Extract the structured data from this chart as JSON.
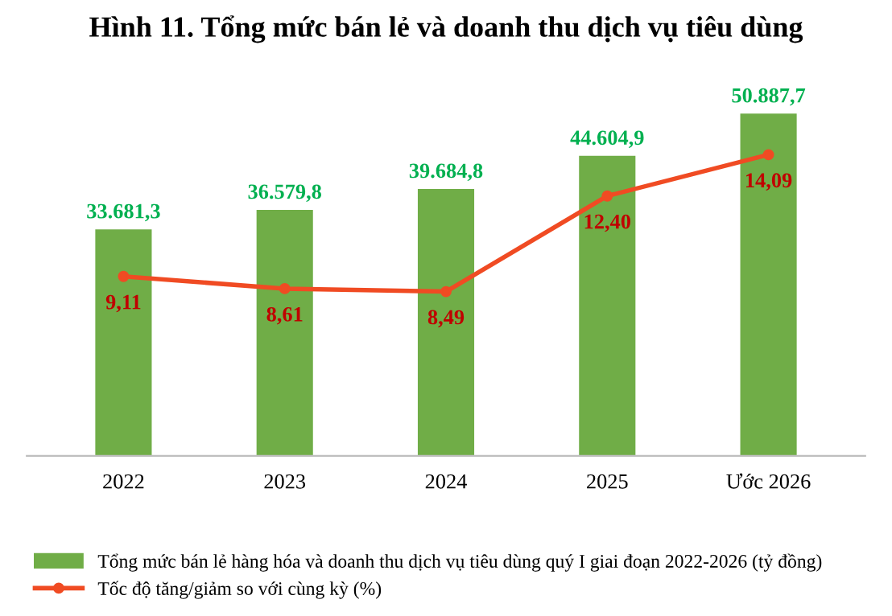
{
  "chart_data": {
    "type": "bar",
    "title": "Hình 11. Tổng mức bán lẻ và doanh thu dịch vụ tiêu dùng",
    "categories": [
      "2022",
      "2023",
      "2024",
      "2025",
      "Ước 2026"
    ],
    "legend": "bottom",
    "grid": false,
    "series": [
      {
        "name": "Tổng mức bán lẻ hàng hóa và doanh thu dịch vụ tiêu dùng quý I giai đoạn 2022-2026 (tỷ đồng)",
        "color": "#70ad47",
        "values": [
          33681.3,
          36579.8,
          39684.8,
          44604.9,
          50887.7
        ],
        "value_labels": [
          "33.681,3",
          "36.579,8",
          "39.684,8",
          "44.604,9",
          "50.887,7"
        ]
      },
      {
        "name": "Tốc độ tăng/giảm so với cùng kỳ (%)",
        "type": "line",
        "axis": "y2",
        "color": "#f04b23",
        "marker": "circle",
        "line_style": "solid",
        "values": [
          9.11,
          8.61,
          8.49,
          12.4,
          14.09
        ],
        "value_labels": [
          "9,11",
          "8,61",
          "8,49",
          "12,40",
          "14,09"
        ]
      }
    ]
  }
}
